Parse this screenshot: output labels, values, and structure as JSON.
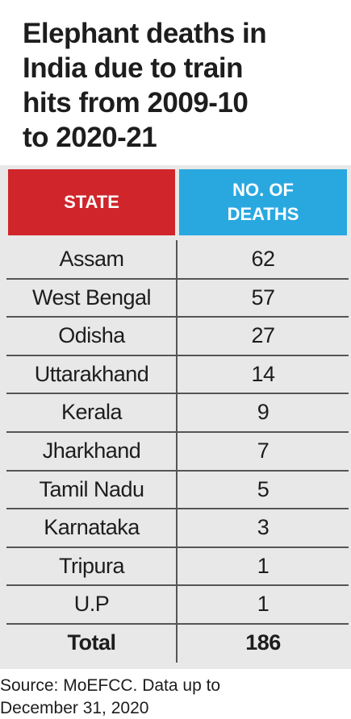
{
  "title_lines": [
    "Elephant deaths in",
    "India due to train",
    "hits from 2009-10",
    "to 2020-21"
  ],
  "table": {
    "headers": [
      "STATE",
      "NO. OF DEATHS"
    ],
    "rows": [
      [
        "Assam",
        62
      ],
      [
        "West Bengal",
        57
      ],
      [
        "Odisha",
        27
      ],
      [
        "Uttarakhand",
        14
      ],
      [
        "Kerala",
        9
      ],
      [
        "Jharkhand",
        7
      ],
      [
        "Tamil Nadu",
        5
      ],
      [
        "Karnataka",
        3
      ],
      [
        "Tripura",
        1
      ],
      [
        "U.P",
        1
      ]
    ],
    "total": [
      "Total",
      186
    ]
  },
  "source_lines": [
    "Source: MoEFCC. Data up to",
    "December 31, 2020"
  ]
}
